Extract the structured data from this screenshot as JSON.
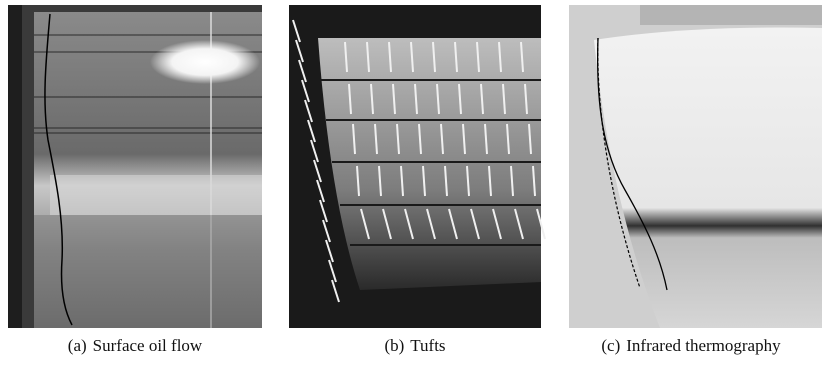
{
  "figure": {
    "panels": [
      {
        "label": "(a)",
        "caption": "Surface oil flow"
      },
      {
        "label": "(b)",
        "caption": "Tufts"
      },
      {
        "label": "(c)",
        "caption": "Infrared thermography"
      }
    ]
  }
}
